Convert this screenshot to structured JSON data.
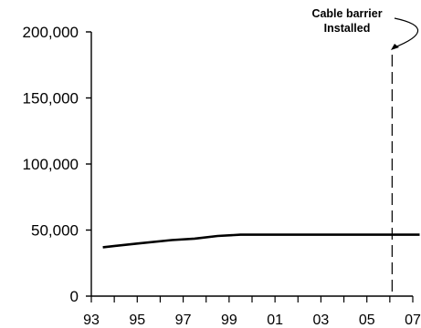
{
  "chart_data": {
    "type": "line",
    "title": "",
    "xlabel": "",
    "ylabel": "",
    "x_tick_labels": [
      "93",
      "95",
      "97",
      "99",
      "01",
      "03",
      "05",
      "07"
    ],
    "y_tick_labels": [
      "0",
      "50,000",
      "100,000",
      "150,000",
      "200,000"
    ],
    "ylim": [
      0,
      200000
    ],
    "x_range": [
      1993,
      2007
    ],
    "grid": false,
    "series": [
      {
        "x": [
          1993.5,
          1995,
          1996.5,
          1997.5,
          1998.5,
          1999.5,
          2000.5,
          2002,
          2004,
          2006,
          2007.3
        ],
        "y": [
          37000,
          39800,
          42400,
          43500,
          45500,
          46500,
          46500,
          46500,
          46500,
          46500,
          46500
        ]
      }
    ],
    "annotations": [
      {
        "x": 2006.1,
        "line_style": "dashed",
        "text_lines": [
          "Cable barrier",
          "Installed"
        ]
      }
    ]
  },
  "colors": {
    "line": "#000000",
    "axis": "#000000"
  }
}
